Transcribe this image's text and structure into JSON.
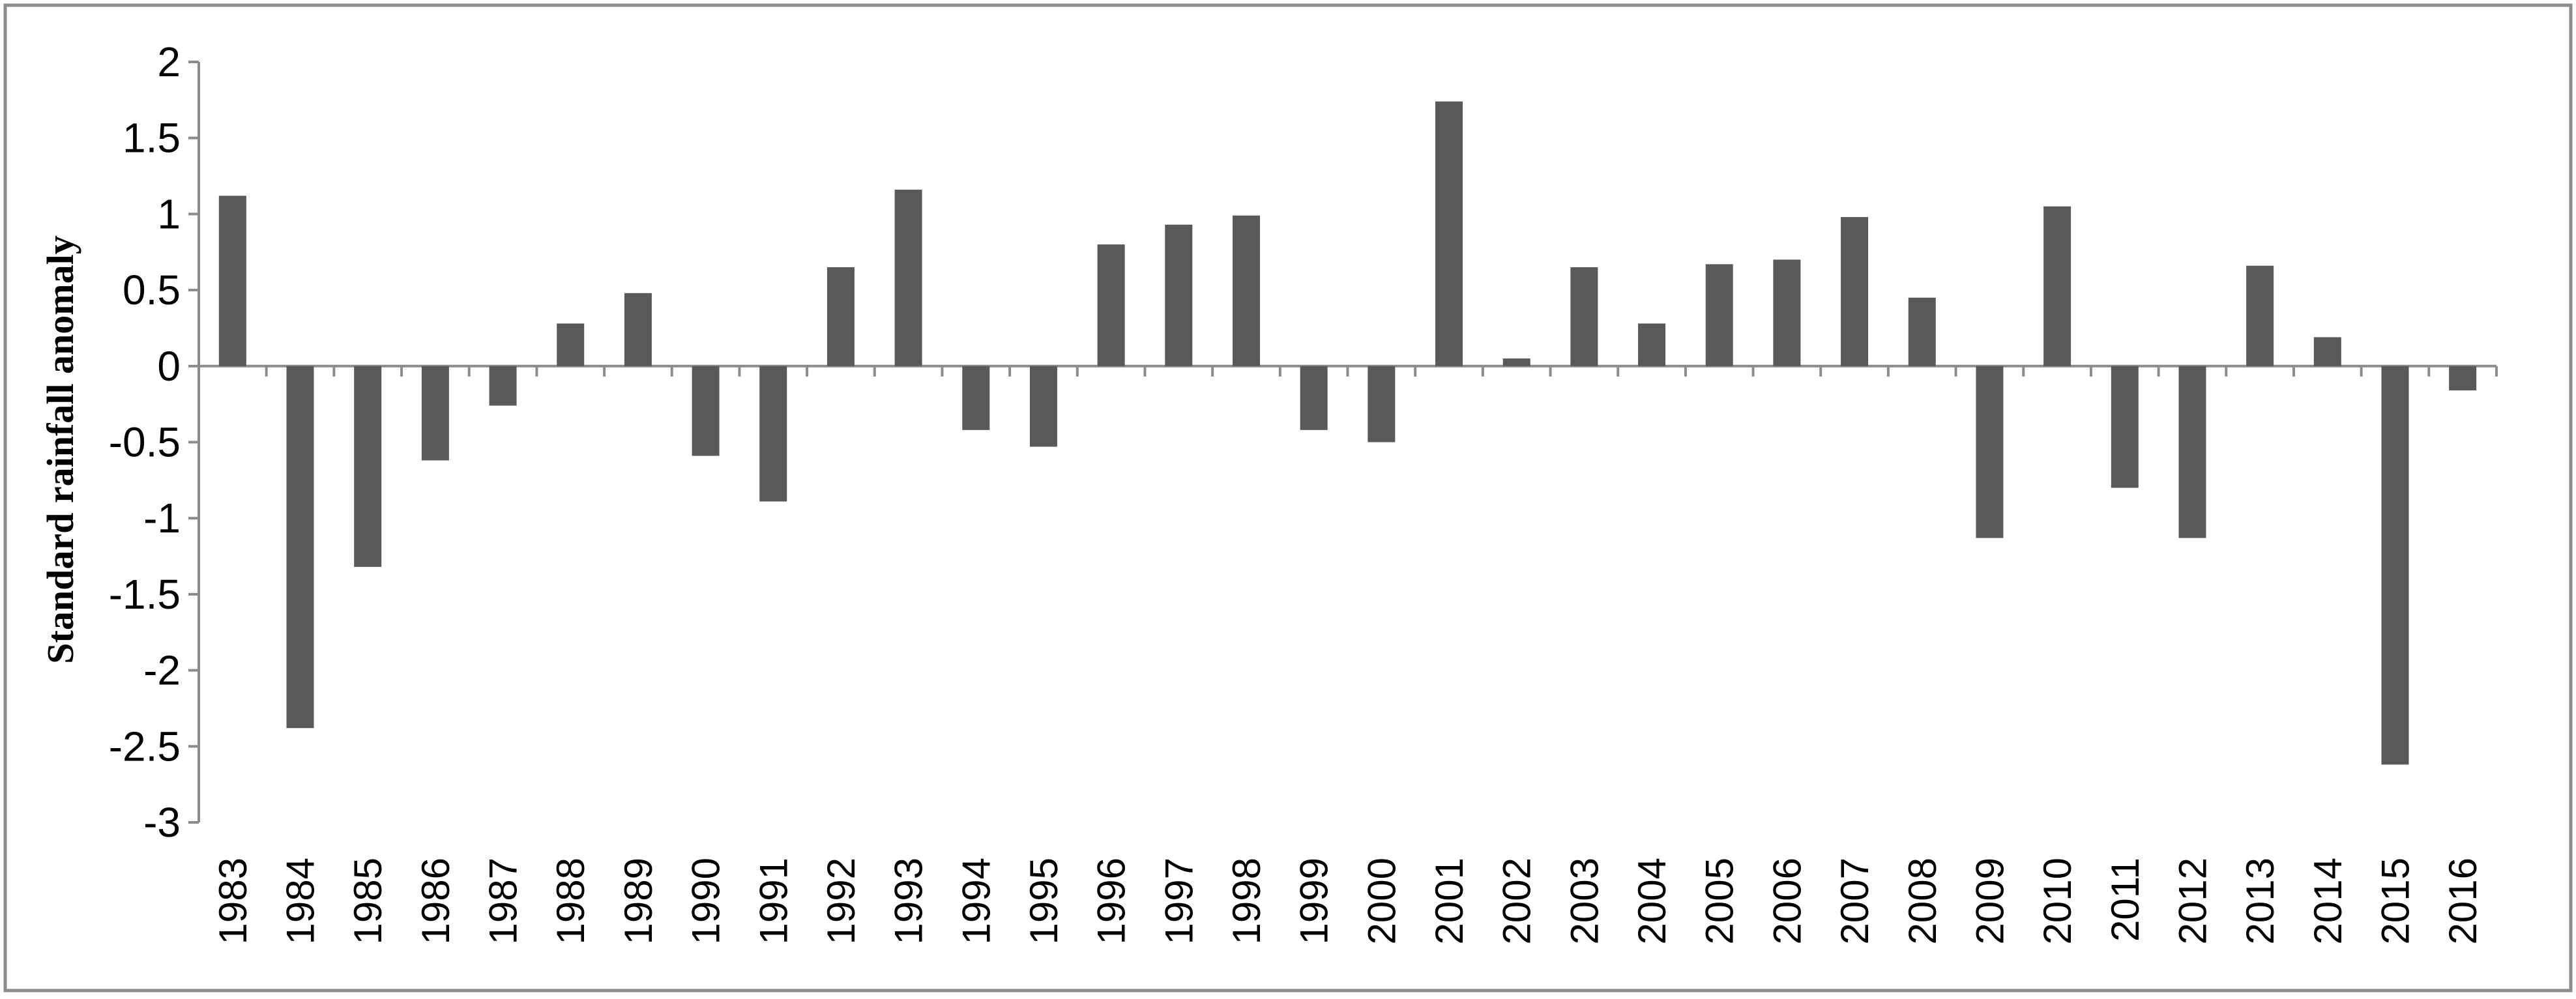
{
  "chart_data": {
    "type": "bar",
    "title": "",
    "xlabel": "",
    "ylabel": "Standard rainfall anomaly",
    "categories": [
      "1983",
      "1984",
      "1985",
      "1986",
      "1987",
      "1988",
      "1989",
      "1990",
      "1991",
      "1992",
      "1993",
      "1994",
      "1995",
      "1996",
      "1997",
      "1998",
      "1999",
      "2000",
      "2001",
      "2002",
      "2003",
      "2004",
      "2005",
      "2006",
      "2007",
      "2008",
      "2009",
      "2010",
      "2011",
      "2012",
      "2013",
      "2014",
      "2015",
      "2016"
    ],
    "values": [
      1.12,
      -2.38,
      -1.32,
      -0.62,
      -0.26,
      0.28,
      0.48,
      -0.59,
      -0.89,
      0.65,
      1.16,
      -0.42,
      -0.53,
      0.8,
      0.93,
      0.99,
      -0.42,
      -0.5,
      1.74,
      0.05,
      0.65,
      0.28,
      0.67,
      0.7,
      0.98,
      0.45,
      -1.13,
      1.05,
      -0.8,
      -1.13,
      0.66,
      0.19,
      -2.62,
      -0.16
    ],
    "yticks": [
      "2",
      "1.5",
      "1",
      "0.5",
      "0",
      "-0.5",
      "-1",
      "-1.5",
      "-2",
      "-2.5",
      "-3"
    ],
    "ylim": [
      -3,
      2
    ],
    "grid": false,
    "legend": "none",
    "bar_color": "#595959"
  }
}
